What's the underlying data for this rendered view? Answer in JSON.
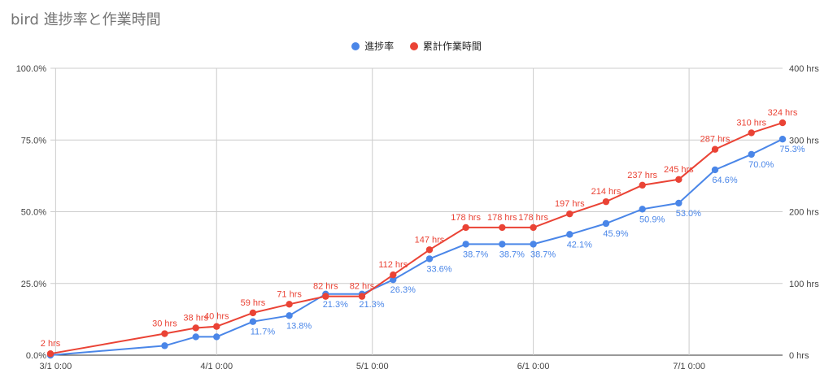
{
  "chart_data": {
    "type": "line",
    "title": "bird 進捗率と作業時間",
    "legend_position": "top",
    "grid": true,
    "x_axis": {
      "type": "date",
      "range": [
        "2021-02-28",
        "2021-07-19"
      ],
      "ticks": [
        {
          "date": "2021-03-01",
          "label": "3/1 0:00"
        },
        {
          "date": "2021-04-01",
          "label": "4/1 0:00"
        },
        {
          "date": "2021-05-01",
          "label": "5/1 0:00"
        },
        {
          "date": "2021-06-01",
          "label": "6/1 0:00"
        },
        {
          "date": "2021-07-01",
          "label": "7/1 0:00"
        }
      ]
    },
    "y_left": {
      "min": 0,
      "max": 100,
      "ticks": [
        {
          "value": 0,
          "label": "0.0%"
        },
        {
          "value": 25,
          "label": "25.0%"
        },
        {
          "value": 50,
          "label": "50.0%"
        },
        {
          "value": 75,
          "label": "75.0%"
        },
        {
          "value": 100,
          "label": "100.0%"
        }
      ]
    },
    "y_right": {
      "min": 0,
      "max": 400,
      "ticks": [
        {
          "value": 0,
          "label": "0 hrs"
        },
        {
          "value": 100,
          "label": "100 hrs"
        },
        {
          "value": 200,
          "label": "200 hrs"
        },
        {
          "value": 300,
          "label": "300 hrs"
        },
        {
          "value": 400,
          "label": "400 hrs"
        }
      ]
    },
    "x": [
      "2021-02-28",
      "2021-03-22",
      "2021-03-28",
      "2021-04-01",
      "2021-04-08",
      "2021-04-15",
      "2021-04-22",
      "2021-04-29",
      "2021-05-05",
      "2021-05-12",
      "2021-05-19",
      "2021-05-26",
      "2021-06-01",
      "2021-06-08",
      "2021-06-15",
      "2021-06-22",
      "2021-06-29",
      "2021-07-06",
      "2021-07-13",
      "2021-07-19"
    ],
    "series": [
      {
        "name": "進捗率",
        "axis": "left",
        "color": "#4a86e8",
        "values": [
          0,
          3.3,
          6.4,
          6.4,
          11.7,
          13.8,
          21.3,
          21.3,
          26.3,
          33.6,
          38.7,
          38.7,
          38.7,
          42.1,
          45.9,
          50.9,
          53.0,
          64.6,
          70.0,
          75.3
        ],
        "labels": [
          null,
          null,
          null,
          null,
          "11.7%",
          "13.8%",
          "21.3%",
          "21.3%",
          "26.3%",
          "33.6%",
          "38.7%",
          "38.7%",
          "38.7%",
          "42.1%",
          "45.9%",
          "50.9%",
          "53.0%",
          "64.6%",
          "70.0%",
          "75.3%"
        ]
      },
      {
        "name": "累計作業時間",
        "axis": "right",
        "color": "#ea4335",
        "values": [
          2,
          30,
          38,
          40,
          59,
          71,
          82,
          82,
          112,
          147,
          178,
          178,
          178,
          197,
          214,
          237,
          245,
          287,
          310,
          324
        ],
        "labels": [
          "2 hrs",
          "30 hrs",
          "38 hrs",
          "40 hrs",
          "59 hrs",
          "71 hrs",
          "82 hrs",
          "82 hrs",
          "112 hrs",
          "147 hrs",
          "178 hrs",
          "178 hrs",
          "178 hrs",
          "197 hrs",
          "214 hrs",
          "237 hrs",
          "245 hrs",
          "287 hrs",
          "310 hrs",
          "324 hrs"
        ]
      }
    ]
  }
}
